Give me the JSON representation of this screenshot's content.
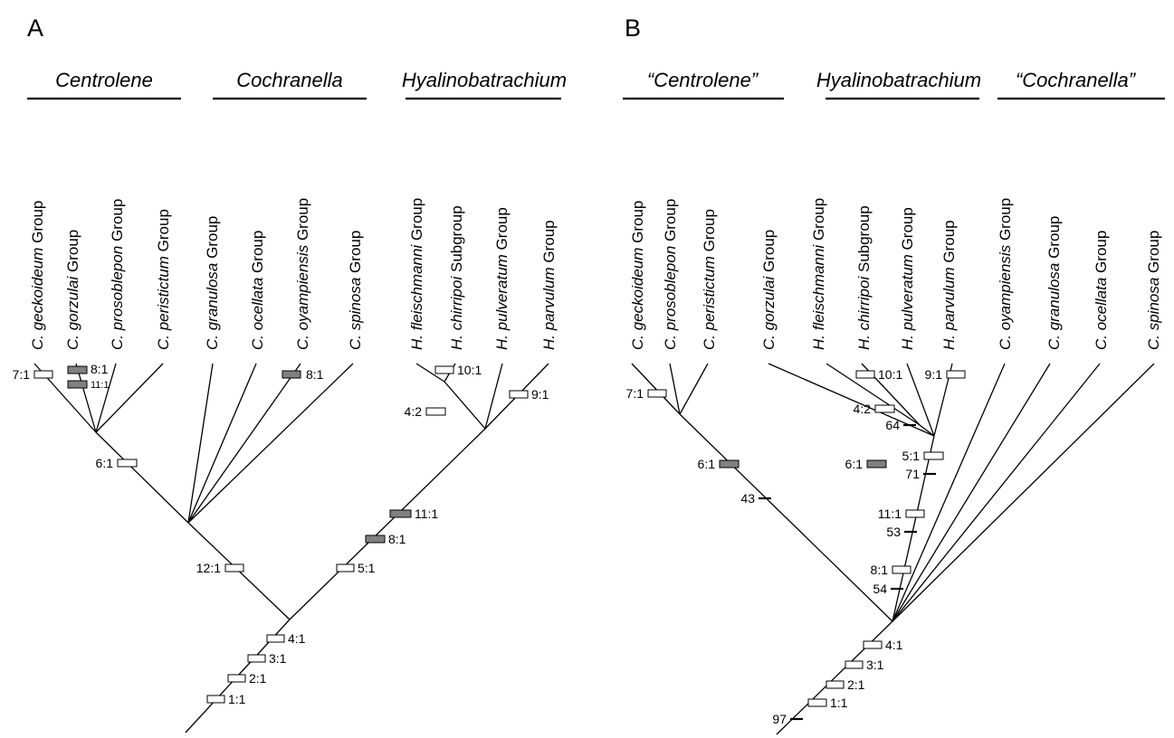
{
  "panels": [
    {
      "letter": "A",
      "genera": [
        "Centrolene",
        "Cochranella",
        "Hyalinobatrachium"
      ],
      "taxa": [
        {
          "epithet": "C. geckoideum",
          "rank": "Group"
        },
        {
          "epithet": "C. gorzulai",
          "rank": "Group"
        },
        {
          "epithet": "C. prosoblepon",
          "rank": "Group"
        },
        {
          "epithet": "C. peristictum",
          "rank": "Group"
        },
        {
          "epithet": "C. granulosa",
          "rank": "Group"
        },
        {
          "epithet": "C. ocellata",
          "rank": "Group"
        },
        {
          "epithet": "C. oyampiensis",
          "rank": "Group"
        },
        {
          "epithet": "C. spinosa",
          "rank": "Group"
        },
        {
          "epithet": "H. fleischmanni",
          "rank": "Group"
        },
        {
          "epithet": "H. chirripoi",
          "rank": "Subgroup"
        },
        {
          "epithet": "H. pulveratum",
          "rank": "Group"
        },
        {
          "epithet": "H. parvulum",
          "rank": "Group"
        }
      ],
      "characters": [
        {
          "label": "1:1",
          "state": "open"
        },
        {
          "label": "2:1",
          "state": "open"
        },
        {
          "label": "3:1",
          "state": "open"
        },
        {
          "label": "4:1",
          "state": "open"
        },
        {
          "label": "12:1",
          "state": "open"
        },
        {
          "label": "5:1",
          "state": "open"
        },
        {
          "label": "8:1",
          "state": "filled"
        },
        {
          "label": "11:1",
          "state": "filled"
        },
        {
          "label": "6:1",
          "state": "open"
        },
        {
          "label": "7:1",
          "state": "open"
        },
        {
          "label": "8:1",
          "state": "filled"
        },
        {
          "label": "11:1",
          "state": "filled"
        },
        {
          "label": "8:1",
          "state": "filled"
        },
        {
          "label": "4:2",
          "state": "open"
        },
        {
          "label": "10:1",
          "state": "open"
        },
        {
          "label": "9:1",
          "state": "open"
        }
      ],
      "support": []
    },
    {
      "letter": "B",
      "genera": [
        "“Centrolene”",
        "Hyalinobatrachium",
        "“Cochranella”"
      ],
      "taxa": [
        {
          "epithet": "C. geckoideum",
          "rank": "Group"
        },
        {
          "epithet": "C. prosoblepon",
          "rank": "Group"
        },
        {
          "epithet": "C. peristictum",
          "rank": "Group"
        },
        {
          "epithet": "C. gorzulai",
          "rank": "Group"
        },
        {
          "epithet": "H. fleischmanni",
          "rank": "Group"
        },
        {
          "epithet": "H. chirripoi",
          "rank": "Subgroup"
        },
        {
          "epithet": "H. pulveratum",
          "rank": "Group"
        },
        {
          "epithet": "H. parvulum",
          "rank": "Group"
        },
        {
          "epithet": "C. oyampiensis",
          "rank": "Group"
        },
        {
          "epithet": "C. granulosa",
          "rank": "Group"
        },
        {
          "epithet": "C. ocellata",
          "rank": "Group"
        },
        {
          "epithet": "C. spinosa",
          "rank": "Group"
        }
      ],
      "characters": [
        {
          "label": "1:1",
          "state": "open"
        },
        {
          "label": "2:1",
          "state": "open"
        },
        {
          "label": "3:1",
          "state": "open"
        },
        {
          "label": "4:1",
          "state": "open"
        },
        {
          "label": "8:1",
          "state": "open"
        },
        {
          "label": "11:1",
          "state": "open"
        },
        {
          "label": "5:1",
          "state": "open"
        },
        {
          "label": "4:2",
          "state": "open"
        },
        {
          "label": "10:1",
          "state": "open"
        },
        {
          "label": "9:1",
          "state": "open"
        },
        {
          "label": "6:1",
          "state": "filled"
        },
        {
          "label": "7:1",
          "state": "open"
        },
        {
          "label": "6:1",
          "state": "filled"
        }
      ],
      "support": [
        "97",
        "54",
        "53",
        "71",
        "64",
        "43"
      ]
    }
  ]
}
